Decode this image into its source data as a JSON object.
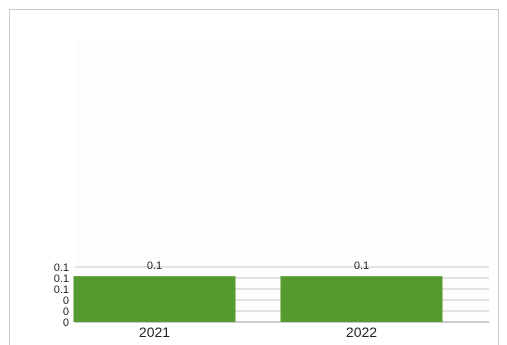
{
  "chart_data": {
    "type": "bar",
    "categories": [
      "2021",
      "2022"
    ],
    "values": [
      0.1,
      0.1
    ],
    "data_labels": [
      "0.1",
      "0.1"
    ],
    "y_tick_labels": [
      "0",
      "0",
      "0",
      "0.1",
      "0.1",
      "0.1"
    ],
    "ylim": [
      0,
      0.12
    ],
    "grid": true,
    "bar_color": "#559a2e",
    "plot_background": "#fdfdfd",
    "grid_color": "#c8c8c8",
    "title": "",
    "xlabel": "",
    "ylabel": ""
  }
}
